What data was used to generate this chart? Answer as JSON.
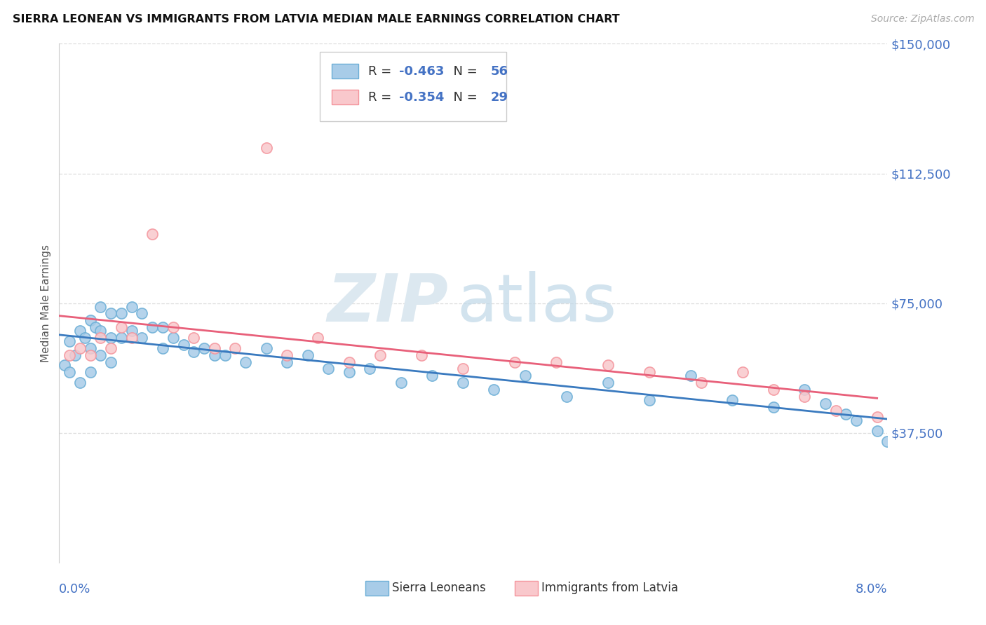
{
  "title": "SIERRA LEONEAN VS IMMIGRANTS FROM LATVIA MEDIAN MALE EARNINGS CORRELATION CHART",
  "source": "Source: ZipAtlas.com",
  "ylabel": "Median Male Earnings",
  "xlim": [
    0.0,
    0.08
  ],
  "ylim": [
    0,
    150000
  ],
  "ytick_vals": [
    37500,
    75000,
    112500,
    150000
  ],
  "ytick_labels": [
    "$37,500",
    "$75,000",
    "$112,500",
    "$150,000"
  ],
  "legend1_r": "-0.463",
  "legend1_n": "56",
  "legend2_r": "-0.354",
  "legend2_n": "29",
  "sierra_color": "#a8cce8",
  "sierra_edge_color": "#6baed6",
  "latvia_color": "#f9c8cc",
  "latvia_edge_color": "#f4949c",
  "sierra_line_color": "#3a7abf",
  "latvia_line_color": "#e8607a",
  "watermark_zip": "ZIP",
  "watermark_atlas": "atlas",
  "bottom_legend_sierra": "Sierra Leoneans",
  "bottom_legend_latvia": "Immigrants from Latvia",
  "sierra_x": [
    0.0005,
    0.001,
    0.001,
    0.0015,
    0.002,
    0.002,
    0.0025,
    0.003,
    0.003,
    0.003,
    0.0035,
    0.004,
    0.004,
    0.004,
    0.005,
    0.005,
    0.005,
    0.006,
    0.006,
    0.007,
    0.007,
    0.008,
    0.008,
    0.009,
    0.01,
    0.01,
    0.011,
    0.012,
    0.013,
    0.014,
    0.015,
    0.016,
    0.018,
    0.02,
    0.022,
    0.024,
    0.026,
    0.028,
    0.03,
    0.033,
    0.036,
    0.039,
    0.042,
    0.045,
    0.049,
    0.053,
    0.057,
    0.061,
    0.065,
    0.069,
    0.072,
    0.074,
    0.076,
    0.077,
    0.079,
    0.08
  ],
  "sierra_y": [
    57000,
    64000,
    55000,
    60000,
    67000,
    52000,
    65000,
    70000,
    62000,
    55000,
    68000,
    74000,
    67000,
    60000,
    72000,
    65000,
    58000,
    72000,
    65000,
    74000,
    67000,
    72000,
    65000,
    68000,
    68000,
    62000,
    65000,
    63000,
    61000,
    62000,
    60000,
    60000,
    58000,
    62000,
    58000,
    60000,
    56000,
    55000,
    56000,
    52000,
    54000,
    52000,
    50000,
    54000,
    48000,
    52000,
    47000,
    54000,
    47000,
    45000,
    50000,
    46000,
    43000,
    41000,
    38000,
    35000
  ],
  "latvia_x": [
    0.001,
    0.002,
    0.003,
    0.004,
    0.005,
    0.006,
    0.007,
    0.009,
    0.011,
    0.013,
    0.015,
    0.017,
    0.02,
    0.022,
    0.025,
    0.028,
    0.031,
    0.035,
    0.039,
    0.044,
    0.048,
    0.053,
    0.057,
    0.062,
    0.066,
    0.069,
    0.072,
    0.075,
    0.079
  ],
  "latvia_y": [
    60000,
    62000,
    60000,
    65000,
    62000,
    68000,
    65000,
    95000,
    68000,
    65000,
    62000,
    62000,
    120000,
    60000,
    65000,
    58000,
    60000,
    60000,
    56000,
    58000,
    58000,
    57000,
    55000,
    52000,
    55000,
    50000,
    48000,
    44000,
    42000
  ]
}
